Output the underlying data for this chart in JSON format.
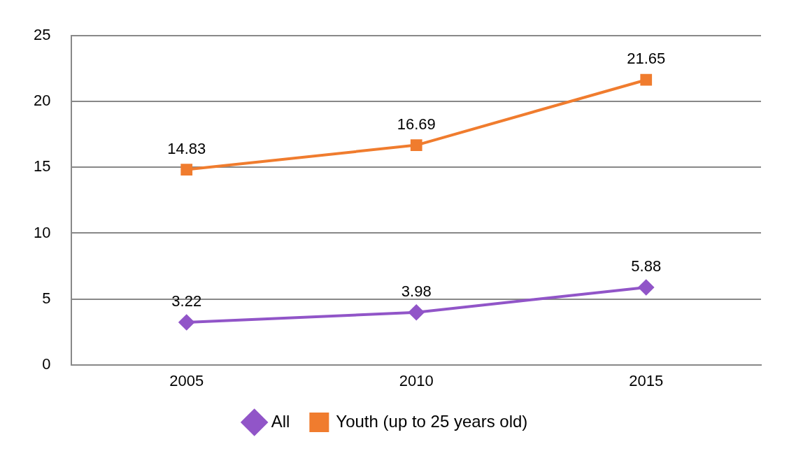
{
  "chart_data": {
    "type": "line",
    "categories": [
      "2005",
      "2010",
      "2015"
    ],
    "series": [
      {
        "name": "All",
        "color": "#9155c8",
        "values": [
          3.22,
          3.98,
          5.88
        ],
        "marker": "diamond"
      },
      {
        "name": "Youth (up to 25 years old)",
        "color": "#f07c2e",
        "values": [
          14.83,
          16.69,
          21.65
        ],
        "marker": "square"
      }
    ],
    "ylim": [
      0,
      25
    ],
    "yticks": [
      0,
      5,
      10,
      15,
      20,
      25
    ],
    "grid": "y",
    "legend": "bottom",
    "data_labels": true
  }
}
